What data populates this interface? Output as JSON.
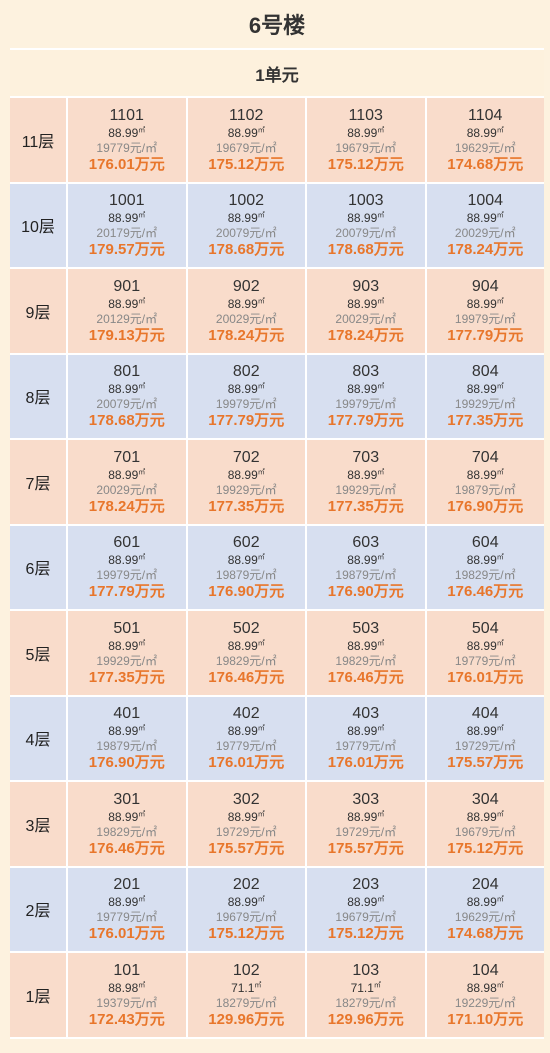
{
  "building_title": "6号楼",
  "unit_title": "1单元",
  "area_unit": "㎡",
  "price_unit": "元/㎡",
  "total_unit": "万元",
  "floors": [
    {
      "label": "11层",
      "rooms": [
        {
          "no": "1101",
          "area": "88.99",
          "unit_price": "19779",
          "total": "176.01"
        },
        {
          "no": "1102",
          "area": "88.99",
          "unit_price": "19679",
          "total": "175.12"
        },
        {
          "no": "1103",
          "area": "88.99",
          "unit_price": "19679",
          "total": "175.12"
        },
        {
          "no": "1104",
          "area": "88.99",
          "unit_price": "19629",
          "total": "174.68"
        }
      ]
    },
    {
      "label": "10层",
      "rooms": [
        {
          "no": "1001",
          "area": "88.99",
          "unit_price": "20179",
          "total": "179.57"
        },
        {
          "no": "1002",
          "area": "88.99",
          "unit_price": "20079",
          "total": "178.68"
        },
        {
          "no": "1003",
          "area": "88.99",
          "unit_price": "20079",
          "total": "178.68"
        },
        {
          "no": "1004",
          "area": "88.99",
          "unit_price": "20029",
          "total": "178.24"
        }
      ]
    },
    {
      "label": "9层",
      "rooms": [
        {
          "no": "901",
          "area": "88.99",
          "unit_price": "20129",
          "total": "179.13"
        },
        {
          "no": "902",
          "area": "88.99",
          "unit_price": "20029",
          "total": "178.24"
        },
        {
          "no": "903",
          "area": "88.99",
          "unit_price": "20029",
          "total": "178.24"
        },
        {
          "no": "904",
          "area": "88.99",
          "unit_price": "19979",
          "total": "177.79"
        }
      ]
    },
    {
      "label": "8层",
      "rooms": [
        {
          "no": "801",
          "area": "88.99",
          "unit_price": "20079",
          "total": "178.68"
        },
        {
          "no": "802",
          "area": "88.99",
          "unit_price": "19979",
          "total": "177.79"
        },
        {
          "no": "803",
          "area": "88.99",
          "unit_price": "19979",
          "total": "177.79"
        },
        {
          "no": "804",
          "area": "88.99",
          "unit_price": "19929",
          "total": "177.35"
        }
      ]
    },
    {
      "label": "7层",
      "rooms": [
        {
          "no": "701",
          "area": "88.99",
          "unit_price": "20029",
          "total": "178.24"
        },
        {
          "no": "702",
          "area": "88.99",
          "unit_price": "19929",
          "total": "177.35"
        },
        {
          "no": "703",
          "area": "88.99",
          "unit_price": "19929",
          "total": "177.35"
        },
        {
          "no": "704",
          "area": "88.99",
          "unit_price": "19879",
          "total": "176.90"
        }
      ]
    },
    {
      "label": "6层",
      "rooms": [
        {
          "no": "601",
          "area": "88.99",
          "unit_price": "19979",
          "total": "177.79"
        },
        {
          "no": "602",
          "area": "88.99",
          "unit_price": "19879",
          "total": "176.90"
        },
        {
          "no": "603",
          "area": "88.99",
          "unit_price": "19879",
          "total": "176.90"
        },
        {
          "no": "604",
          "area": "88.99",
          "unit_price": "19829",
          "total": "176.46"
        }
      ]
    },
    {
      "label": "5层",
      "rooms": [
        {
          "no": "501",
          "area": "88.99",
          "unit_price": "19929",
          "total": "177.35"
        },
        {
          "no": "502",
          "area": "88.99",
          "unit_price": "19829",
          "total": "176.46"
        },
        {
          "no": "503",
          "area": "88.99",
          "unit_price": "19829",
          "total": "176.46"
        },
        {
          "no": "504",
          "area": "88.99",
          "unit_price": "19779",
          "total": "176.01"
        }
      ]
    },
    {
      "label": "4层",
      "rooms": [
        {
          "no": "401",
          "area": "88.99",
          "unit_price": "19879",
          "total": "176.90"
        },
        {
          "no": "402",
          "area": "88.99",
          "unit_price": "19779",
          "total": "176.01"
        },
        {
          "no": "403",
          "area": "88.99",
          "unit_price": "19779",
          "total": "176.01"
        },
        {
          "no": "404",
          "area": "88.99",
          "unit_price": "19729",
          "total": "175.57"
        }
      ]
    },
    {
      "label": "3层",
      "rooms": [
        {
          "no": "301",
          "area": "88.99",
          "unit_price": "19829",
          "total": "176.46"
        },
        {
          "no": "302",
          "area": "88.99",
          "unit_price": "19729",
          "total": "175.57"
        },
        {
          "no": "303",
          "area": "88.99",
          "unit_price": "19729",
          "total": "175.57"
        },
        {
          "no": "304",
          "area": "88.99",
          "unit_price": "19679",
          "total": "175.12"
        }
      ]
    },
    {
      "label": "2层",
      "rooms": [
        {
          "no": "201",
          "area": "88.99",
          "unit_price": "19779",
          "total": "176.01"
        },
        {
          "no": "202",
          "area": "88.99",
          "unit_price": "19679",
          "total": "175.12"
        },
        {
          "no": "203",
          "area": "88.99",
          "unit_price": "19679",
          "total": "175.12"
        },
        {
          "no": "204",
          "area": "88.99",
          "unit_price": "19629",
          "total": "174.68"
        }
      ]
    },
    {
      "label": "1层",
      "rooms": [
        {
          "no": "101",
          "area": "88.98",
          "unit_price": "19379",
          "total": "172.43"
        },
        {
          "no": "102",
          "area": "71.1",
          "unit_price": "18279",
          "total": "129.96"
        },
        {
          "no": "103",
          "area": "71.1",
          "unit_price": "18279",
          "total": "129.96"
        },
        {
          "no": "104",
          "area": "88.98",
          "unit_price": "19229",
          "total": "171.10"
        }
      ]
    }
  ],
  "colors": {
    "pink_row": "#f9dccb",
    "blue_row": "#d7dff0",
    "total_text": "#e8762b"
  }
}
